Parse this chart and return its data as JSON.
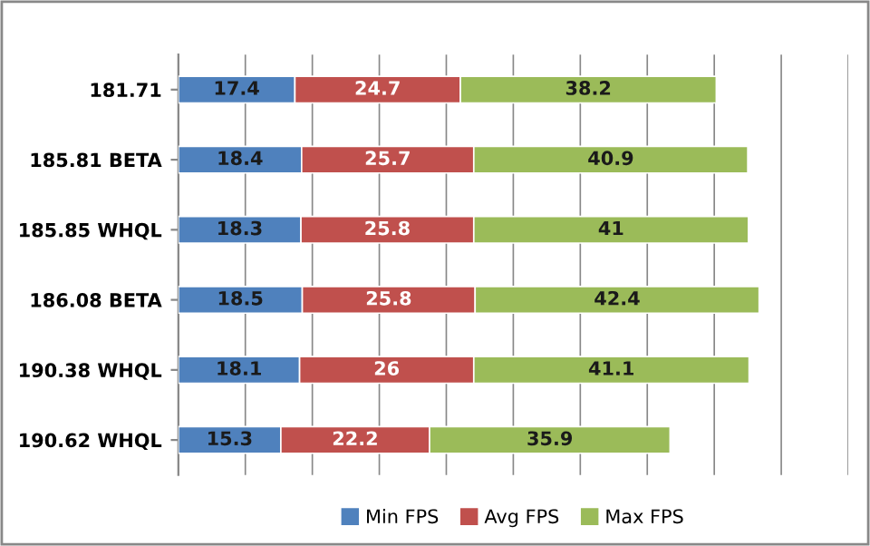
{
  "chart_data": {
    "type": "bar",
    "orientation": "horizontal",
    "stacked": true,
    "categories": [
      "181.71",
      "185.81 BETA",
      "185.85 WHQL",
      "186.08 BETA",
      "190.38 WHQL",
      "190.62 WHQL"
    ],
    "series": [
      {
        "name": "Min FPS",
        "color": "#4f81bd",
        "values": [
          17.4,
          18.4,
          18.3,
          18.5,
          18.1,
          15.3
        ]
      },
      {
        "name": "Avg FPS",
        "color": "#c0504d",
        "values": [
          24.7,
          25.7,
          25.8,
          25.8,
          26,
          22.2
        ]
      },
      {
        "name": "Max FPS",
        "color": "#9bbb59",
        "values": [
          38.2,
          40.9,
          41,
          42.4,
          41.1,
          35.9
        ]
      }
    ],
    "xlim": [
      0,
      100
    ],
    "xticks": [
      {
        "value": 0,
        "label": null
      },
      {
        "value": 10,
        "label": null
      },
      {
        "value": 20,
        "label": null
      },
      {
        "value": 30,
        "label": null
      },
      {
        "value": 40,
        "label": null
      },
      {
        "value": 50,
        "label": null
      },
      {
        "value": 60,
        "label": null
      },
      {
        "value": 70,
        "label": null
      },
      {
        "value": 80,
        "label": null
      },
      {
        "value": 90,
        "label": null
      },
      {
        "value": 100,
        "label": null
      }
    ],
    "tick_labels": "y",
    "grid": "x",
    "legend": "bottom",
    "data_labels": true
  }
}
